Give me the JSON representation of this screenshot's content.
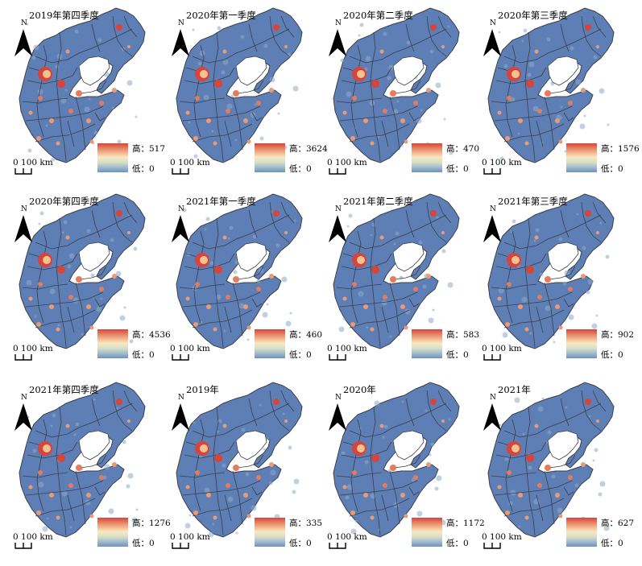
{
  "legend_colors": {
    "high": "#d7443b",
    "mid": "#f9e7c0",
    "low": "#6f92bc"
  },
  "map_base_color": "#5d7fb5",
  "boundary_color": "#3a3f4a",
  "north_label": "N",
  "scale_label": "0  100 km",
  "legend_high_prefix": "高：",
  "legend_low_label": "低：0",
  "panels": [
    {
      "title": "2019年第四季度",
      "high": "517"
    },
    {
      "title": "2020年第一季度",
      "high": "3624"
    },
    {
      "title": "2020年第二季度",
      "high": "470"
    },
    {
      "title": "2020年第三季度",
      "high": "1576"
    },
    {
      "title": "2020年第四季度",
      "high": "4536"
    },
    {
      "title": "2021年第一季度",
      "high": "460"
    },
    {
      "title": "2021年第二季度",
      "high": "583"
    },
    {
      "title": "2021年第三季度",
      "high": "902"
    },
    {
      "title": "2021年第四季度",
      "high": "1276"
    },
    {
      "title": "2019年",
      "high": "335"
    },
    {
      "title": "2020年",
      "high": "1172"
    },
    {
      "title": "2021年",
      "high": "627"
    }
  ],
  "legend_high_text": [
    "高：517",
    "高：3624",
    "高：470",
    "高：1576",
    "高：4536",
    "高：460",
    "高：583",
    "高：902",
    "高：1276",
    "高：335",
    "高：1172",
    "高：627"
  ]
}
